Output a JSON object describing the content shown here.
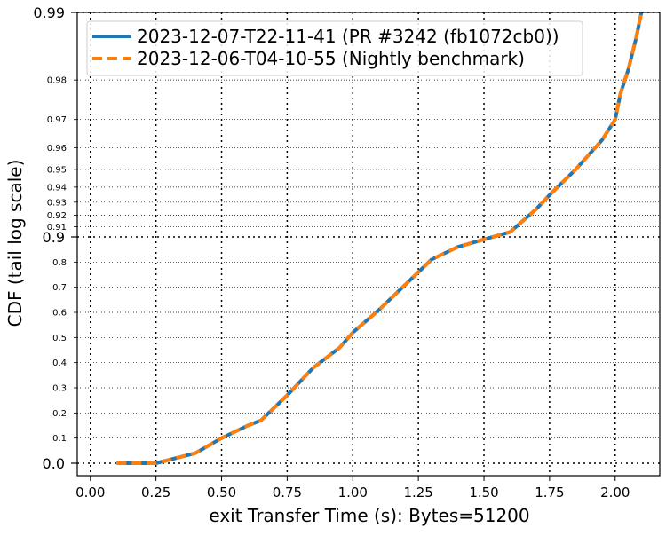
{
  "chart_data": {
    "type": "line",
    "xlabel": "exit Transfer Time (s): Bytes=51200",
    "ylabel": "CDF (tail log scale)",
    "xlim": [
      -0.05,
      2.17
    ],
    "x_ticks": [
      0.0,
      0.25,
      0.5,
      0.75,
      1.0,
      1.25,
      1.5,
      1.75,
      2.0
    ],
    "x_tick_labels": [
      "0.00",
      "0.25",
      "0.50",
      "0.75",
      "1.00",
      "1.25",
      "1.50",
      "1.75",
      "2.00"
    ],
    "y_scale": "tail-log (linear 0–0.9, log-tail 0.9–0.99)",
    "y_major_ticks": [
      0.0,
      0.9,
      0.99
    ],
    "y_major_tick_labels": [
      "0.0",
      "0.9",
      "0.99"
    ],
    "y_minor_ticks": [
      0.1,
      0.2,
      0.3,
      0.4,
      0.5,
      0.6,
      0.7,
      0.8,
      0.91,
      0.92,
      0.93,
      0.94,
      0.95,
      0.96,
      0.97,
      0.98
    ],
    "y_minor_tick_labels": [
      "0.1",
      "0.2",
      "0.3",
      "0.4",
      "0.5",
      "0.6",
      "0.7",
      "0.8",
      "0.91",
      "0.92",
      "0.93",
      "0.94",
      "0.95",
      "0.96",
      "0.97",
      "0.98"
    ],
    "grid": true,
    "legend_position": "top-left",
    "series": [
      {
        "name": "2023-12-07-T22-11-41 (PR #3242 (fb1072cb0))",
        "color": "#1f77b4",
        "style": "solid",
        "x": [
          0.1,
          0.25,
          0.4,
          0.5,
          0.6,
          0.65,
          0.75,
          0.85,
          0.95,
          1.0,
          1.1,
          1.2,
          1.3,
          1.4,
          1.5,
          1.6,
          1.7,
          1.75,
          1.85,
          1.9,
          1.95,
          2.0,
          2.02,
          2.05,
          2.08,
          2.1
        ],
        "y": [
          0.0,
          0.0,
          0.04,
          0.1,
          0.15,
          0.17,
          0.27,
          0.38,
          0.46,
          0.52,
          0.61,
          0.71,
          0.81,
          0.86,
          0.89,
          0.905,
          0.925,
          0.935,
          0.95,
          0.957,
          0.963,
          0.97,
          0.977,
          0.982,
          0.987,
          0.99
        ]
      },
      {
        "name": "2023-12-06-T04-10-55 (Nightly benchmark)",
        "color": "#ff7f0e",
        "style": "dashed",
        "x": [
          0.1,
          0.25,
          0.4,
          0.5,
          0.6,
          0.65,
          0.75,
          0.85,
          0.95,
          1.0,
          1.1,
          1.2,
          1.3,
          1.4,
          1.5,
          1.6,
          1.7,
          1.75,
          1.85,
          1.9,
          1.95,
          2.0,
          2.02,
          2.05,
          2.08,
          2.1
        ],
        "y": [
          0.0,
          0.0,
          0.04,
          0.1,
          0.15,
          0.17,
          0.27,
          0.38,
          0.46,
          0.52,
          0.61,
          0.71,
          0.81,
          0.86,
          0.89,
          0.905,
          0.925,
          0.935,
          0.95,
          0.957,
          0.963,
          0.97,
          0.977,
          0.982,
          0.987,
          0.99
        ]
      }
    ]
  }
}
